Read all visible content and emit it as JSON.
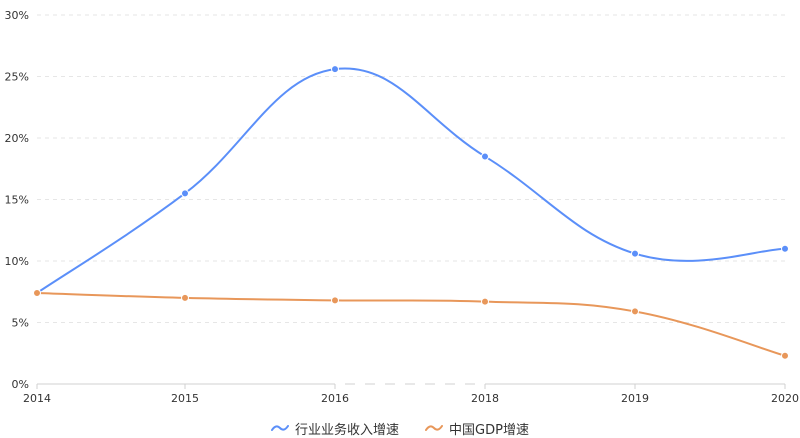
{
  "chart_data": {
    "type": "line",
    "x": [
      "2014",
      "2015",
      "2016",
      "2018",
      "2019",
      "2020"
    ],
    "ylim": [
      0,
      30
    ],
    "y_ticks": [
      "0%",
      "5%",
      "10%",
      "15%",
      "20%",
      "25%",
      "30%"
    ],
    "grid": true,
    "legend_placement": "bottom",
    "series": [
      {
        "name": "行业业务收入增速",
        "color": "#5b8ff9",
        "values": [
          7.4,
          15.5,
          25.6,
          18.5,
          10.6,
          11.0
        ]
      },
      {
        "name": "中国GDP增速",
        "color": "#e8975a",
        "values": [
          7.4,
          7.0,
          6.8,
          6.7,
          5.9,
          2.3
        ]
      }
    ]
  }
}
